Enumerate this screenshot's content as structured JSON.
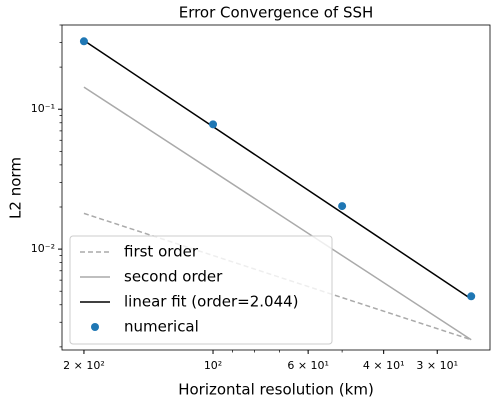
{
  "chart_data": {
    "type": "line",
    "title": "Error Convergence of SSH",
    "xlabel": "Horizontal resolution (km)",
    "ylabel": "L2 norm",
    "xscale": "log",
    "yscale": "log",
    "xlim": [
      225,
      22.6
    ],
    "ylim": [
      0.0019,
      0.4
    ],
    "xticks": [
      {
        "value": 200,
        "label": "2 × 10²"
      },
      {
        "value": 100,
        "label": "10²"
      },
      {
        "value": 60,
        "label": "6 × 10¹"
      },
      {
        "value": 40,
        "label": "4 × 10¹"
      },
      {
        "value": 30,
        "label": "3 × 10¹"
      }
    ],
    "yticks": [
      {
        "value": 0.1,
        "label": "10⁻¹"
      },
      {
        "value": 0.01,
        "label": "10⁻²"
      }
    ],
    "legend": "lower left",
    "series": [
      {
        "name": "first order",
        "color": "#aaaaaa",
        "style": "dashed",
        "x": [
          200,
          25
        ],
        "values": [
          0.018,
          0.00225
        ]
      },
      {
        "name": "second order",
        "color": "#aaaaaa",
        "style": "solid",
        "x": [
          200,
          25
        ],
        "values": [
          0.144,
          0.00225
        ]
      },
      {
        "name": "linear fit (order=2.044)",
        "color": "#000000",
        "style": "solid",
        "x": [
          200,
          25
        ],
        "values": [
          0.31,
          0.0044
        ]
      },
      {
        "name": "numerical",
        "color": "#1f77b4",
        "style": "markers",
        "x": [
          200,
          100,
          50,
          25
        ],
        "values": [
          0.306,
          0.078,
          0.0203,
          0.0046
        ]
      }
    ]
  }
}
